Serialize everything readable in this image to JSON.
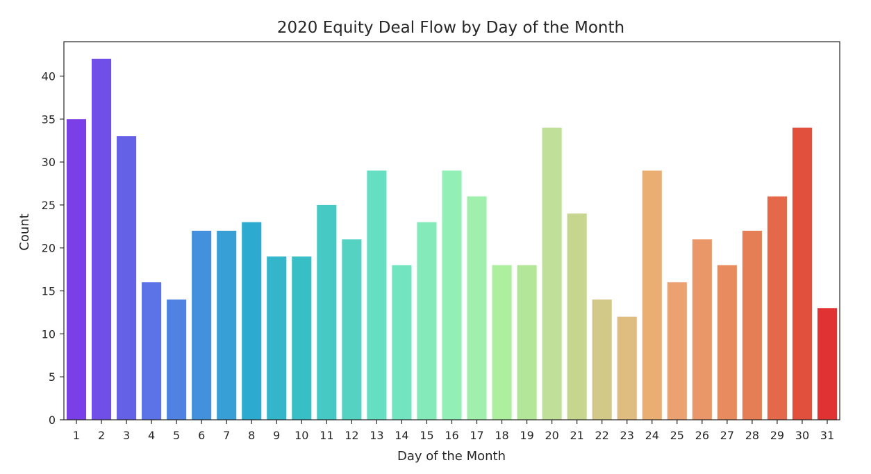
{
  "chart_data": {
    "type": "bar",
    "title": "2020 Equity Deal Flow by Day of the Month",
    "xlabel": "Day of the Month",
    "ylabel": "Count",
    "ylim": [
      0,
      44
    ],
    "yticks": [
      0,
      5,
      10,
      15,
      20,
      25,
      30,
      35,
      40
    ],
    "grid": false,
    "legend": "none",
    "palette": "rainbow",
    "categories": [
      "1",
      "2",
      "3",
      "4",
      "5",
      "6",
      "7",
      "8",
      "9",
      "10",
      "11",
      "12",
      "13",
      "14",
      "15",
      "16",
      "17",
      "18",
      "19",
      "20",
      "21",
      "22",
      "23",
      "24",
      "25",
      "26",
      "27",
      "28",
      "29",
      "30",
      "31"
    ],
    "values": [
      35,
      42,
      33,
      16,
      14,
      22,
      22,
      23,
      19,
      19,
      25,
      21,
      29,
      18,
      23,
      29,
      26,
      18,
      18,
      34,
      24,
      14,
      12,
      29,
      16,
      21,
      18,
      22,
      26,
      34,
      13
    ],
    "colors": [
      "#7a3fe6",
      "#6f4fe8",
      "#6561e7",
      "#5b73e6",
      "#4f82e2",
      "#4390dc",
      "#389ed6",
      "#2caad0",
      "#33b5ca",
      "#38bec5",
      "#46c9c4",
      "#55d2c2",
      "#66dec2",
      "#72e4bf",
      "#84eab9",
      "#92efb6",
      "#a1efad",
      "#aeee9f",
      "#b3e698",
      "#c0e099",
      "#c7d68e",
      "#d2c888",
      "#dfbc7f",
      "#eaae72",
      "#eca270",
      "#e99768",
      "#e88c60",
      "#e57e55",
      "#e3694a",
      "#e1503d",
      "#e03232"
    ]
  }
}
